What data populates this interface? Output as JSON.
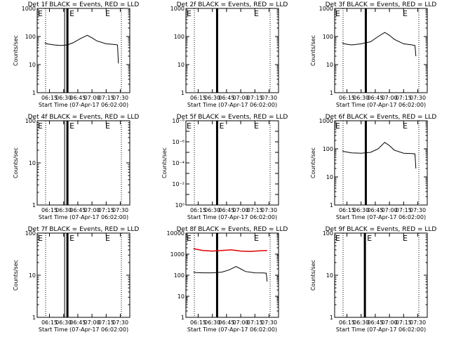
{
  "colors": {
    "events": "#000000",
    "lld": "#e00000",
    "background": "#ffffff",
    "axes": "#000000"
  },
  "xticks": [
    "06:15",
    "06:30",
    "06:45",
    "07:00",
    "07:15",
    "07:30"
  ],
  "xlabel": "Start Time (07-Apr-17 06:02:00)",
  "chart_data": [
    {
      "type": "line",
      "title": "Det 1f BLACK = Events, RED = LLD",
      "ylabel": "Counts/sec",
      "yscale": "log",
      "ylim": [
        1,
        1000
      ],
      "ytick_labels": [
        "1",
        "10",
        "100",
        "1000"
      ],
      "markers": [
        {
          "time": "06:34",
          "label": "E"
        },
        {
          "time": "07:14",
          "label": "E"
        }
      ],
      "series": [
        {
          "name": "Events",
          "color": "#000000",
          "x": [
            "06:10",
            "06:12",
            "06:20",
            "06:27",
            "06:34",
            "06:40",
            "06:48",
            "06:55",
            "07:00",
            "07:05",
            "07:15",
            "07:24",
            "07:27",
            "07:28"
          ],
          "y": [
            60,
            55,
            50,
            48,
            50,
            60,
            85,
            110,
            90,
            70,
            55,
            52,
            50,
            11
          ]
        }
      ]
    },
    {
      "type": "line",
      "title": "Det 2f BLACK = Events, RED = LLD",
      "ylabel": "",
      "yscale": "log",
      "ylim": [
        1,
        1000
      ],
      "ytick_labels": [
        "1",
        "10",
        "100",
        "1000"
      ],
      "markers": [
        {
          "time": "06:35",
          "label": ""
        },
        {
          "time": "07:14",
          "label": "E"
        }
      ],
      "series": []
    },
    {
      "type": "line",
      "title": "Det 3f BLACK = Events, RED = LLD",
      "ylabel": "Counts/sec",
      "yscale": "log",
      "ylim": [
        1,
        1000
      ],
      "ytick_labels": [
        "1",
        "10",
        "100",
        "1000"
      ],
      "markers": [
        {
          "time": "06:35",
          "label": ""
        },
        {
          "time": "07:14",
          "label": "E"
        }
      ],
      "series": [
        {
          "name": "Events",
          "color": "#000000",
          "x": [
            "06:10",
            "06:12",
            "06:20",
            "06:30",
            "06:40",
            "06:48",
            "06:55",
            "07:00",
            "07:05",
            "07:15",
            "07:24",
            "07:27",
            "07:28"
          ],
          "y": [
            60,
            55,
            50,
            55,
            65,
            100,
            140,
            110,
            80,
            55,
            50,
            48,
            20
          ]
        }
      ]
    },
    {
      "type": "line",
      "title": "Det 4f BLACK = Events, RED = LLD",
      "ylabel": "Counts/sec",
      "yscale": "log",
      "ylim": [
        1,
        100
      ],
      "ytick_labels": [
        "1",
        "10",
        "100"
      ],
      "markers": [
        {
          "time": "06:34",
          "label": "E"
        },
        {
          "time": "07:14",
          "label": "E"
        }
      ],
      "series": []
    },
    {
      "type": "line",
      "title": "Det 5f BLACK = Events, RED = LLD",
      "ylabel": "Counts/sec",
      "yscale": "log",
      "ylim": [
        1e-08,
        1
      ],
      "ytick_labels": [
        "10⁰",
        "10⁻²",
        "10⁻⁴",
        "10⁻⁶",
        "10⁻⁸"
      ],
      "markers": [
        {
          "time": "06:35",
          "label": "E"
        },
        {
          "time": "07:14",
          "label": "E"
        }
      ],
      "series": []
    },
    {
      "type": "line",
      "title": "Det 6f BLACK = Events, RED = LLD",
      "ylabel": "Counts/sec",
      "yscale": "log",
      "ylim": [
        1,
        1000
      ],
      "ytick_labels": [
        "1",
        "10",
        "100",
        "1000"
      ],
      "markers": [
        {
          "time": "06:35",
          "label": ""
        },
        {
          "time": "07:14",
          "label": "E"
        }
      ],
      "series": [
        {
          "name": "Events",
          "color": "#000000",
          "x": [
            "06:10",
            "06:12",
            "06:20",
            "06:30",
            "06:40",
            "06:48",
            "06:55",
            "07:00",
            "07:05",
            "07:15",
            "07:24",
            "07:27",
            "07:28"
          ],
          "y": [
            85,
            80,
            72,
            70,
            75,
            100,
            170,
            130,
            90,
            70,
            68,
            66,
            20
          ]
        }
      ]
    },
    {
      "type": "line",
      "title": "Det 7f BLACK = Events, RED = LLD",
      "ylabel": "Counts/sec",
      "yscale": "log",
      "ylim": [
        1,
        100
      ],
      "ytick_labels": [
        "1",
        "10",
        "100"
      ],
      "markers": [
        {
          "time": "06:34",
          "label": "E"
        },
        {
          "time": "07:14",
          "label": "E"
        }
      ],
      "series": []
    },
    {
      "type": "line",
      "title": "Det 8f BLACK = Events, RED = LLD",
      "ylabel": "",
      "yscale": "log",
      "ylim": [
        1,
        10000
      ],
      "ytick_labels": [
        "1",
        "10",
        "100",
        "1000",
        "10000"
      ],
      "markers": [
        {
          "time": "06:35",
          "label": ""
        },
        {
          "time": "07:14",
          "label": "E"
        }
      ],
      "series": [
        {
          "name": "LLD",
          "color": "#e00000",
          "x": [
            "06:10",
            "06:20",
            "06:30",
            "06:40",
            "06:50",
            "07:00",
            "07:10",
            "07:20",
            "07:28"
          ],
          "y": [
            1800,
            1500,
            1400,
            1500,
            1600,
            1400,
            1350,
            1450,
            1500
          ]
        },
        {
          "name": "Events",
          "color": "#000000",
          "x": [
            "06:10",
            "06:12",
            "06:20",
            "06:30",
            "06:40",
            "06:48",
            "06:55",
            "07:00",
            "07:05",
            "07:15",
            "07:24",
            "07:27",
            "07:28"
          ],
          "y": [
            140,
            135,
            130,
            130,
            140,
            180,
            260,
            200,
            150,
            130,
            128,
            125,
            50
          ]
        }
      ]
    },
    {
      "type": "line",
      "title": "Det 9f BLACK = Events, RED = LLD",
      "ylabel": "Counts/sec",
      "yscale": "log",
      "ylim": [
        1,
        100
      ],
      "ytick_labels": [
        "1",
        "10",
        "100"
      ],
      "markers": [
        {
          "time": "06:34",
          "label": "E"
        },
        {
          "time": "07:14",
          "label": "E"
        }
      ],
      "series": []
    }
  ]
}
